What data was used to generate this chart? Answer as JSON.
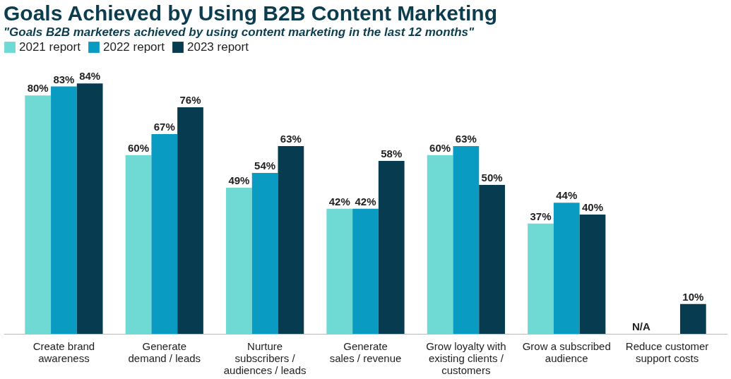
{
  "chart_data": {
    "type": "bar",
    "title": "Goals Achieved by Using B2B Content Marketing",
    "subtitle": "\"Goals B2B marketers achieved by using content marketing in the last 12 months\"",
    "categories": [
      "Create brand\nawareness",
      "Generate\ndemand / leads",
      "Nurture\nsubscribers /\naudiences / leads",
      "Generate\nsales / revenue",
      "Grow loyalty with\nexisting clients /\ncustomers",
      "Grow a subscribed\naudience",
      "Reduce customer\nsupport costs"
    ],
    "series": [
      {
        "name": "2021 report",
        "color": "#6fdad4",
        "values": [
          80,
          60,
          49,
          42,
          60,
          37,
          null
        ],
        "value_labels": [
          "80%",
          "60%",
          "49%",
          "42%",
          "60%",
          "37%",
          "N/A"
        ]
      },
      {
        "name": "2022 report",
        "color": "#0a9bc2",
        "values": [
          83,
          67,
          54,
          42,
          63,
          44,
          null
        ],
        "value_labels": [
          "83%",
          "67%",
          "54%",
          "42%",
          "63%",
          "44%",
          null
        ]
      },
      {
        "name": "2023 report",
        "color": "#073b4f",
        "values": [
          84,
          76,
          63,
          58,
          50,
          40,
          10
        ],
        "value_labels": [
          "84%",
          "76%",
          "63%",
          "58%",
          "50%",
          "40%",
          "10%"
        ]
      }
    ],
    "legend": "top",
    "grid": false
  }
}
